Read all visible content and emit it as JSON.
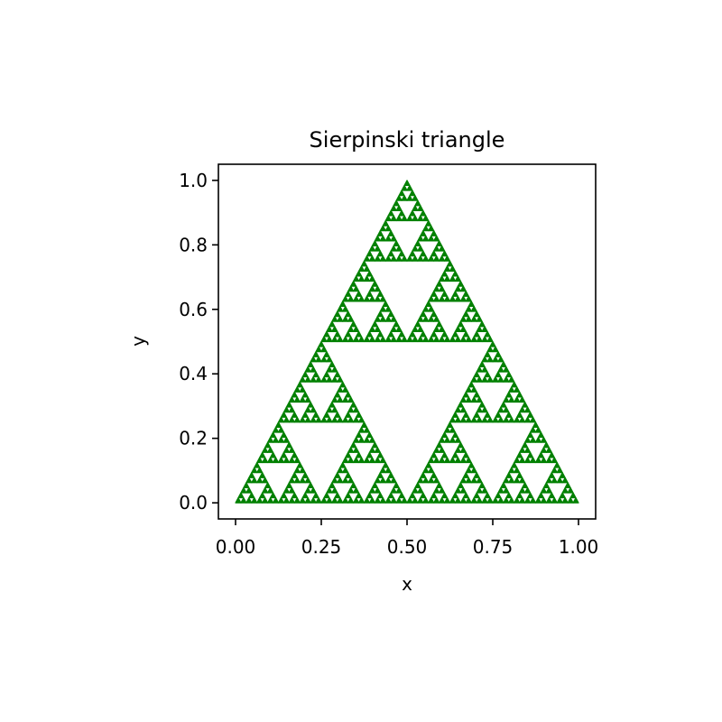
{
  "chart_data": {
    "type": "scatter",
    "title": "Sierpinski triangle",
    "xlabel": "x",
    "ylabel": "y",
    "xlim": [
      -0.05,
      1.05
    ],
    "ylim": [
      -0.05,
      1.05
    ],
    "xticks": [
      0.0,
      0.25,
      0.5,
      0.75,
      1.0
    ],
    "xtick_labels": [
      "0.00",
      "0.25",
      "0.50",
      "0.75",
      "1.00"
    ],
    "yticks": [
      0.0,
      0.2,
      0.4,
      0.6,
      0.8,
      1.0
    ],
    "ytick_labels": [
      "0.0",
      "0.2",
      "0.4",
      "0.6",
      "0.8",
      "1.0"
    ],
    "grid": false,
    "legend": "none",
    "series": [
      {
        "marker_color": "#008000",
        "fractal": "sierpinski",
        "vertices": [
          [
            0.0,
            0.0
          ],
          [
            1.0,
            0.0
          ],
          [
            0.5,
            1.0
          ]
        ],
        "depth": 6
      }
    ]
  }
}
